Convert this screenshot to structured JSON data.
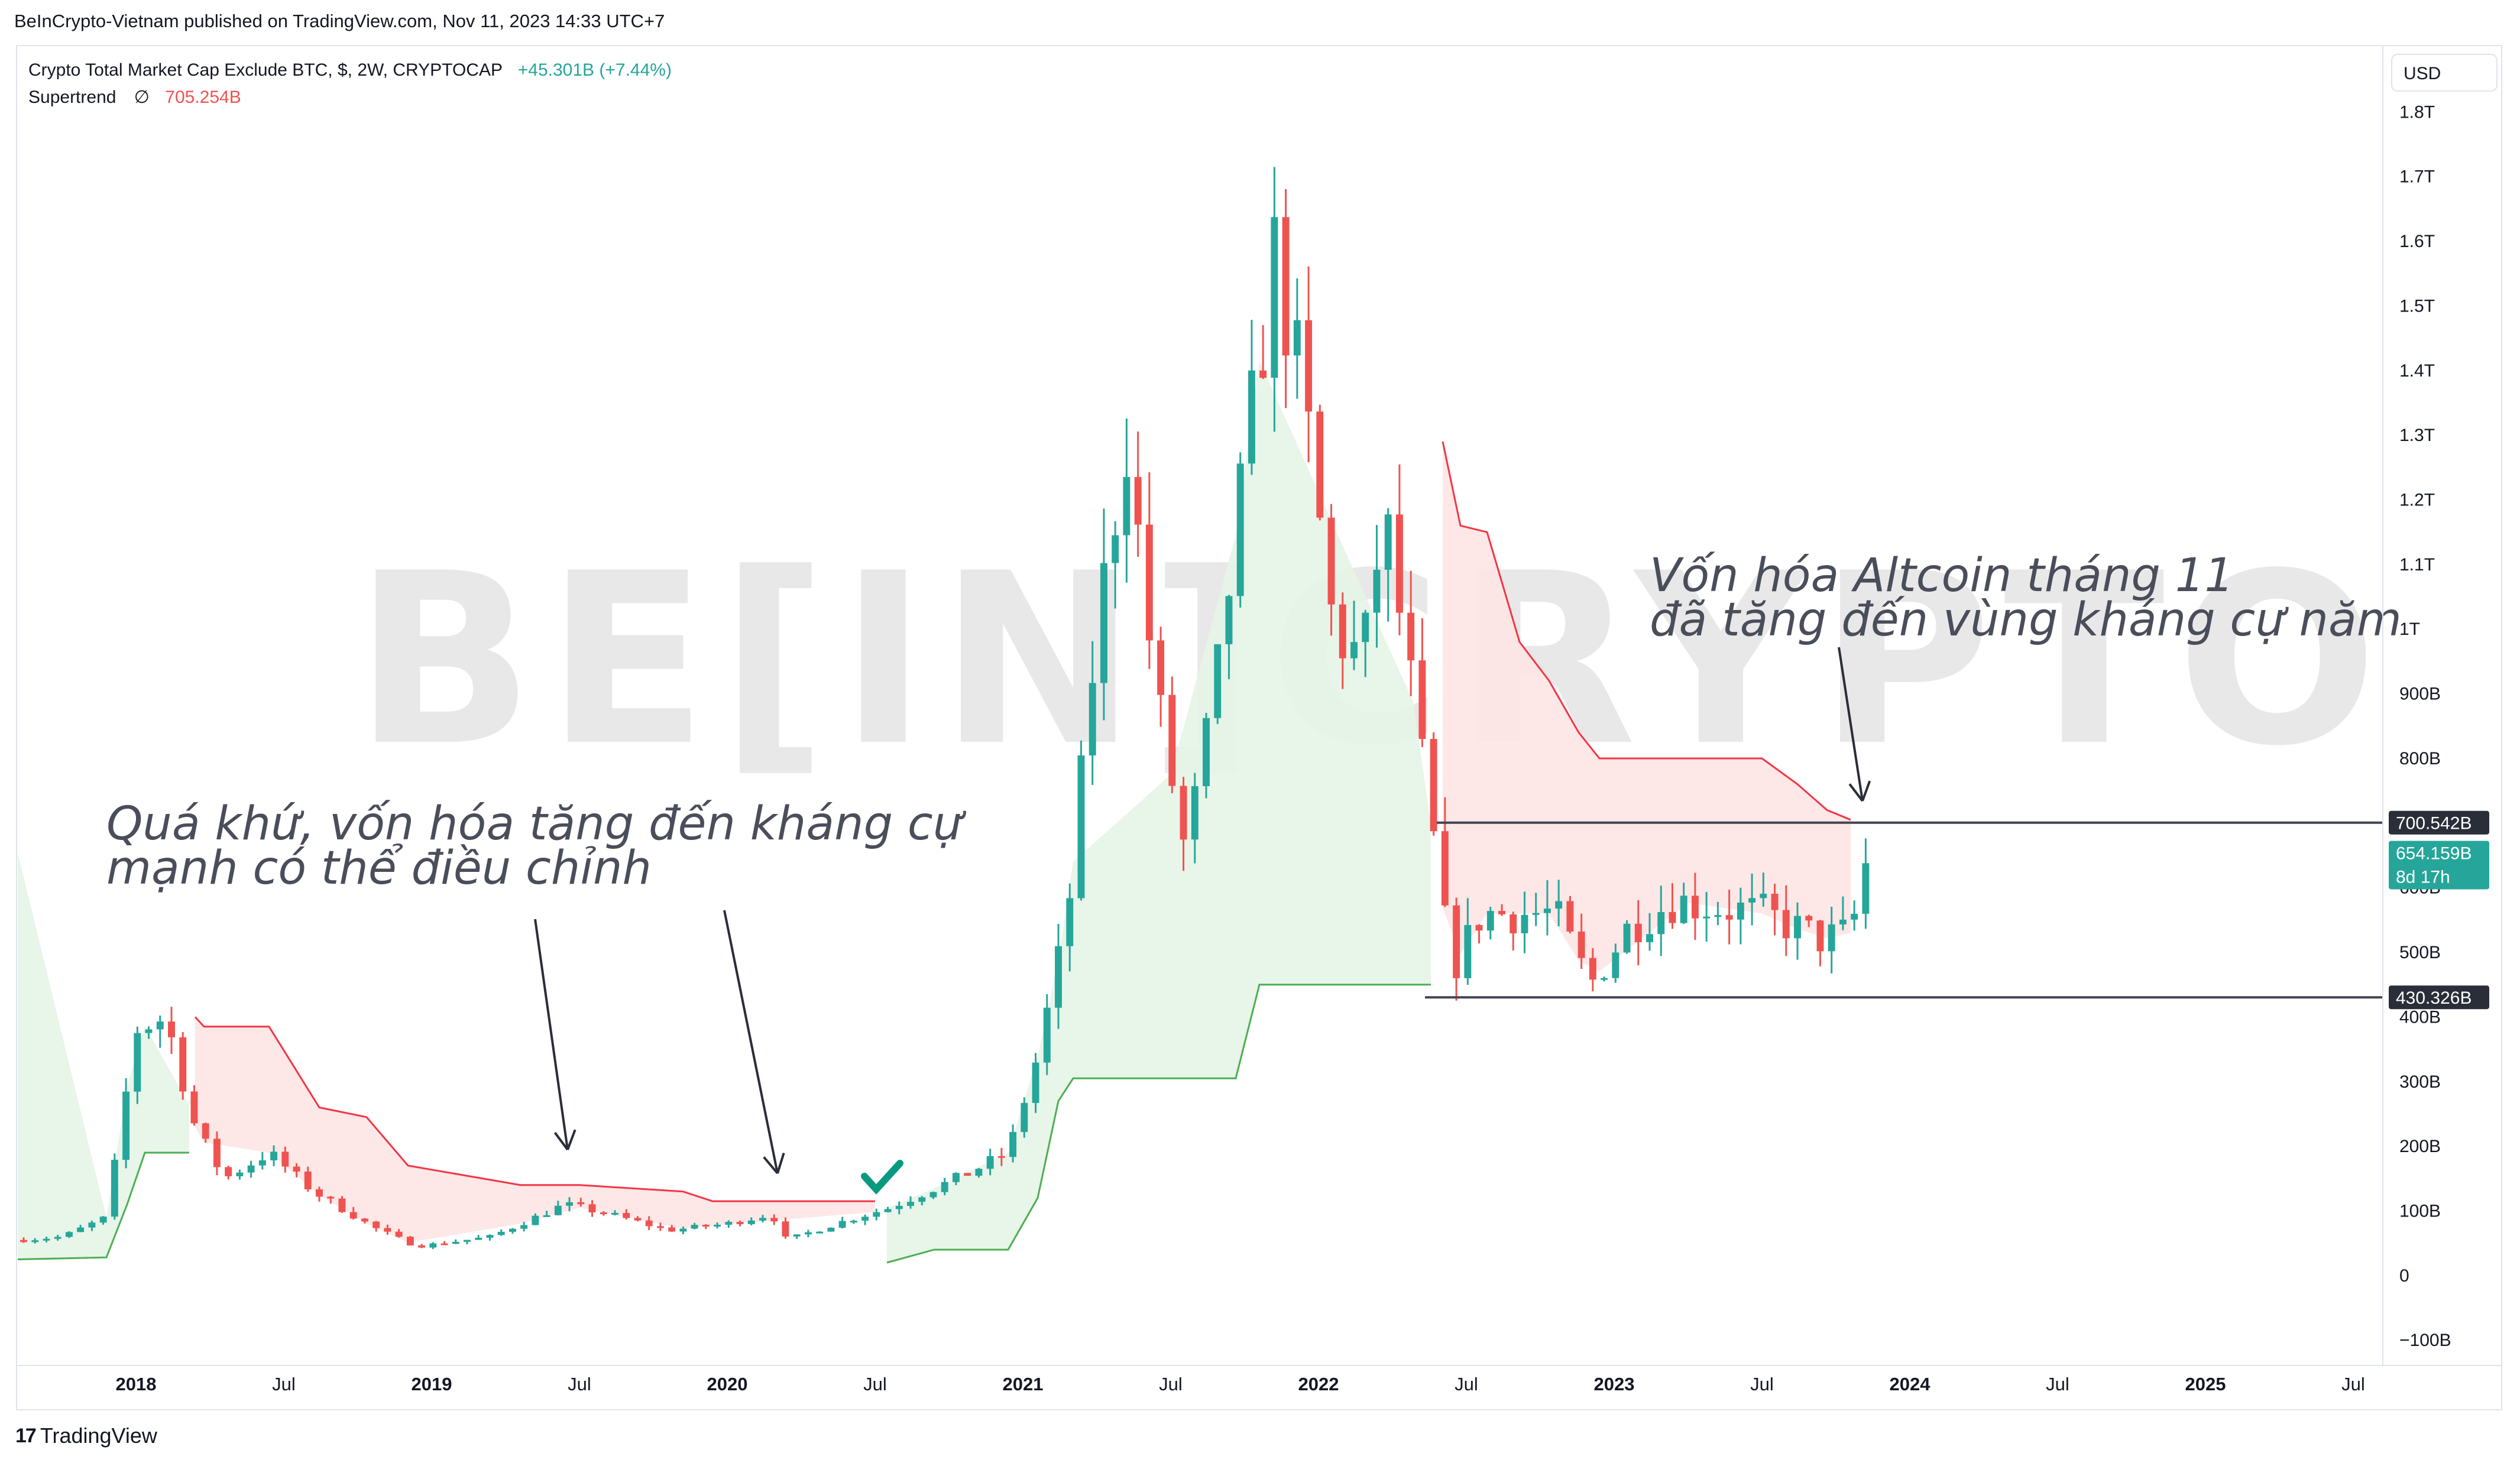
{
  "publisher": "BeInCrypto-Vietnam published on TradingView.com, Nov 11, 2023 14:33 UTC+7",
  "legend": {
    "symbol": "Crypto Total Market Cap Exclude BTC, $, 2W, CRYPTOCAP",
    "change": "+45.301B (+7.44%)",
    "indicator": "Supertrend",
    "indicator_symbol": "∅",
    "indicator_value": "705.254B"
  },
  "watermark": "BE[IN]CRYPTO",
  "footer": {
    "logo": "17",
    "brand": "TradingView"
  },
  "annotations": {
    "left_line1": "Quá khứ, vốn hóa tăng đến kháng cự",
    "left_line2": "mạnh có thể điều chỉnh",
    "right_line1": "Vốn hóa Altcoin tháng 11",
    "right_line2": "đã tăng đến vùng kháng cự năm"
  },
  "currency": "USD",
  "price_labels": {
    "resistance": "700.542B",
    "current": "654.159B",
    "countdown": "8d 17h",
    "support": "430.326B"
  },
  "colors": {
    "up": "#26a69a",
    "down": "#ef5350",
    "supertrend_up": "#4caf50",
    "supertrend_down": "#f23645",
    "up_fill": "#e6f4e7",
    "down_fill": "#fde4e4",
    "hline": "#434651",
    "current_label": "#26a69a",
    "hline_label": "#2a2e39"
  },
  "chart_data": {
    "type": "candlestick",
    "title": "Crypto Total Market Cap Exclude BTC, $, 2W, CRYPTOCAP",
    "y_axis_ticks": [
      "1.8T",
      "1.7T",
      "1.6T",
      "1.5T",
      "1.4T",
      "1.3T",
      "1.2T",
      "1.1T",
      "1T",
      "900B",
      "800B",
      "700B",
      "600B",
      "500B",
      "400B",
      "300B",
      "200B",
      "100B",
      "0",
      "−100B"
    ],
    "y_axis_values": [
      1800,
      1700,
      1600,
      1500,
      1400,
      1300,
      1200,
      1100,
      1000,
      900,
      800,
      700,
      600,
      500,
      400,
      300,
      200,
      100,
      0,
      -100
    ],
    "x_axis_ticks": [
      "2018",
      "Jul",
      "2019",
      "Jul",
      "2020",
      "Jul",
      "2021",
      "Jul",
      "2022",
      "Jul",
      "2023",
      "Jul",
      "2024",
      "Jul",
      "2025",
      "Jul"
    ],
    "x_axis_years": [
      2018.0,
      2018.5,
      2019.0,
      2019.5,
      2020.0,
      2020.5,
      2021.0,
      2021.5,
      2022.0,
      2022.5,
      2023.0,
      2023.5,
      2024.0,
      2024.5,
      2025.0,
      2025.5
    ],
    "y_unit": "USD billions",
    "x_range": [
      2017.6,
      2025.6
    ],
    "y_range": [
      -130,
      1900
    ],
    "grid": false,
    "horizontal_lines": [
      700.542,
      430.326
    ],
    "key_points": [
      {
        "x": 2017.62,
        "y": 55
      },
      {
        "x": 2017.75,
        "y": 60
      },
      {
        "x": 2017.9,
        "y": 90
      },
      {
        "x": 2018.0,
        "y": 380
      },
      {
        "x": 2018.1,
        "y": 400
      },
      {
        "x": 2018.2,
        "y": 230
      },
      {
        "x": 2018.3,
        "y": 150
      },
      {
        "x": 2018.45,
        "y": 190
      },
      {
        "x": 2018.6,
        "y": 130
      },
      {
        "x": 2018.8,
        "y": 75
      },
      {
        "x": 2018.95,
        "y": 45
      },
      {
        "x": 2019.2,
        "y": 60
      },
      {
        "x": 2019.45,
        "y": 110
      },
      {
        "x": 2019.6,
        "y": 95
      },
      {
        "x": 2019.8,
        "y": 70
      },
      {
        "x": 2020.0,
        "y": 80
      },
      {
        "x": 2020.15,
        "y": 95
      },
      {
        "x": 2020.2,
        "y": 55
      },
      {
        "x": 2020.4,
        "y": 85
      },
      {
        "x": 2020.55,
        "y": 105
      },
      {
        "x": 2020.8,
        "y": 155
      },
      {
        "x": 2020.95,
        "y": 190
      },
      {
        "x": 2021.05,
        "y": 340
      },
      {
        "x": 2021.15,
        "y": 550
      },
      {
        "x": 2021.25,
        "y": 1000
      },
      {
        "x": 2021.35,
        "y": 1300
      },
      {
        "x": 2021.45,
        "y": 900
      },
      {
        "x": 2021.55,
        "y": 650
      },
      {
        "x": 2021.65,
        "y": 900
      },
      {
        "x": 2021.75,
        "y": 1250
      },
      {
        "x": 2021.85,
        "y": 1580
      },
      {
        "x": 2021.95,
        "y": 1350
      },
      {
        "x": 2022.05,
        "y": 1000
      },
      {
        "x": 2022.15,
        "y": 950
      },
      {
        "x": 2022.22,
        "y": 1180
      },
      {
        "x": 2022.3,
        "y": 950
      },
      {
        "x": 2022.38,
        "y": 700
      },
      {
        "x": 2022.45,
        "y": 470
      },
      {
        "x": 2022.55,
        "y": 560
      },
      {
        "x": 2022.65,
        "y": 560
      },
      {
        "x": 2022.8,
        "y": 560
      },
      {
        "x": 2022.92,
        "y": 450
      },
      {
        "x": 2023.05,
        "y": 540
      },
      {
        "x": 2023.2,
        "y": 580
      },
      {
        "x": 2023.35,
        "y": 570
      },
      {
        "x": 2023.5,
        "y": 560
      },
      {
        "x": 2023.6,
        "y": 540
      },
      {
        "x": 2023.7,
        "y": 520
      },
      {
        "x": 2023.8,
        "y": 530
      },
      {
        "x": 2023.86,
        "y": 654
      }
    ],
    "supertrend_up_segments": [
      [
        [
          2017.6,
          25
        ],
        [
          2017.9,
          28
        ],
        [
          2017.97,
          110
        ],
        [
          2018.03,
          190
        ],
        [
          2018.18,
          190
        ]
      ],
      [
        [
          2020.54,
          20
        ],
        [
          2020.7,
          40
        ],
        [
          2020.95,
          40
        ],
        [
          2021.05,
          120
        ],
        [
          2021.12,
          270
        ],
        [
          2021.17,
          305
        ],
        [
          2021.5,
          305
        ],
        [
          2021.72,
          305
        ],
        [
          2021.8,
          450
        ],
        [
          2022.32,
          450
        ],
        [
          2022.38,
          450
        ]
      ]
    ],
    "supertrend_down_segments": [
      [
        [
          2018.2,
          400
        ],
        [
          2018.23,
          385
        ],
        [
          2018.45,
          385
        ],
        [
          2018.62,
          260
        ],
        [
          2018.78,
          245
        ],
        [
          2018.92,
          170
        ],
        [
          2019.3,
          140
        ],
        [
          2019.5,
          140
        ],
        [
          2019.85,
          130
        ],
        [
          2019.95,
          115
        ],
        [
          2020.5,
          115
        ]
      ],
      [
        [
          2022.42,
          1290
        ],
        [
          2022.48,
          1160
        ],
        [
          2022.57,
          1150
        ],
        [
          2022.68,
          980
        ],
        [
          2022.78,
          920
        ],
        [
          2022.88,
          840
        ],
        [
          2022.95,
          800
        ],
        [
          2023.25,
          800
        ],
        [
          2023.5,
          800
        ],
        [
          2023.62,
          760
        ],
        [
          2023.72,
          720
        ],
        [
          2023.8,
          705
        ]
      ]
    ]
  }
}
